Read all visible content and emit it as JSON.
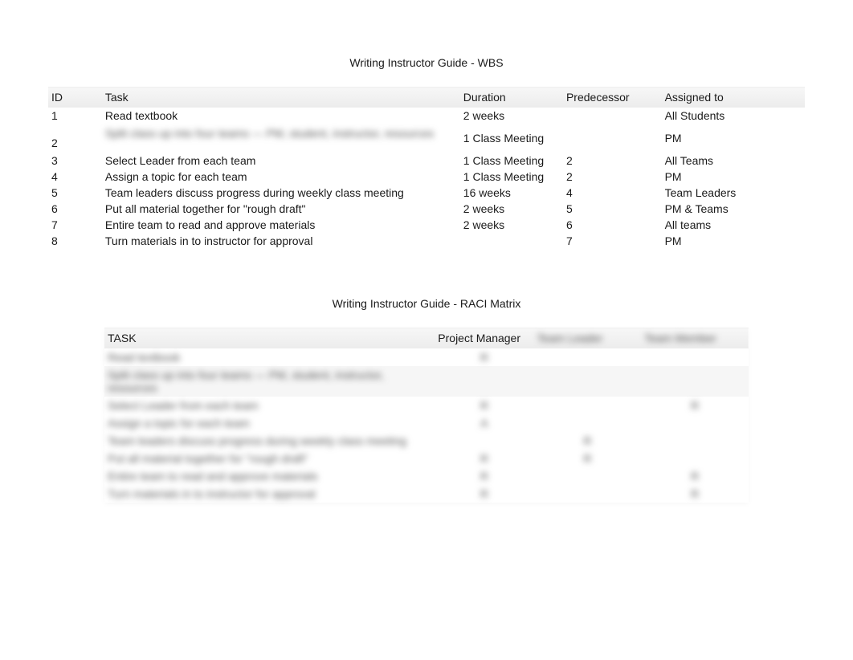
{
  "wbs": {
    "title": "Writing Instructor Guide - WBS",
    "columns": [
      "ID",
      "Task",
      "Duration",
      "Predecessor",
      "Assigned to"
    ],
    "rows": [
      {
        "id": "1",
        "task": "Read textbook",
        "task_blurred": false,
        "duration": "2 weeks",
        "predecessor": "",
        "assigned": "All Students"
      },
      {
        "id": "2",
        "task": "Split class up into four teams — PM, student, instructor, resources",
        "task_blurred": true,
        "duration": "1 Class Meeting",
        "predecessor": "",
        "assigned": "PM"
      },
      {
        "id": "3",
        "task": "Select Leader from each team",
        "task_blurred": false,
        "duration": "1 Class Meeting",
        "predecessor": "2",
        "assigned": "All Teams"
      },
      {
        "id": "4",
        "task": "Assign a topic for each team",
        "task_blurred": false,
        "duration": "1 Class Meeting",
        "predecessor": "2",
        "assigned": "PM"
      },
      {
        "id": "5",
        "task": "Team leaders discuss progress during weekly class meeting",
        "task_blurred": false,
        "duration": "16 weeks",
        "predecessor": "4",
        "assigned": "Team Leaders"
      },
      {
        "id": "6",
        "task": "Put all material together for \"rough draft\"",
        "task_blurred": false,
        "duration": "2 weeks",
        "predecessor": "5",
        "assigned": "PM & Teams"
      },
      {
        "id": "7",
        "task": "Entire team to read and approve materials",
        "task_blurred": false,
        "duration": "2 weeks",
        "predecessor": "6",
        "assigned": "All teams"
      },
      {
        "id": "8",
        "task": "Turn materials in to instructor for approval",
        "task_blurred": false,
        "duration": "",
        "predecessor": "7",
        "assigned": "PM"
      }
    ]
  },
  "raci": {
    "title": "Writing Instructor Guide - RACI Matrix",
    "columns": [
      "TASK",
      "Project Manager",
      "Team Leader",
      "Team Member"
    ],
    "header_blurred": [
      false,
      false,
      true,
      true
    ],
    "rows": [
      {
        "task": "Read textbook",
        "pm": "R",
        "tl": "",
        "tm": "",
        "alt": false
      },
      {
        "task": "Split class up into four teams — PM, student, instructor, resources",
        "pm": "",
        "tl": "",
        "tm": "",
        "alt": true
      },
      {
        "task": "Select Leader from each team",
        "pm": "R",
        "tl": "",
        "tm": "R",
        "alt": false
      },
      {
        "task": "Assign a topic for each team",
        "pm": "A",
        "tl": "",
        "tm": "",
        "alt": false
      },
      {
        "task": "Team leaders discuss progress during weekly class meeting",
        "pm": "",
        "tl": "R",
        "tm": "",
        "alt": false
      },
      {
        "task": "Put all material together for \"rough draft\"",
        "pm": "R",
        "tl": "R",
        "tm": "",
        "alt": false
      },
      {
        "task": "Entire team to read and approve materials",
        "pm": "R",
        "tl": "",
        "tm": "R",
        "alt": false
      },
      {
        "task": "Turn materials in to instructor for approval",
        "pm": "R",
        "tl": "",
        "tm": "R",
        "alt": false
      }
    ]
  },
  "colors": {
    "text": "#1a1a1a",
    "header_bg_top": "#f7f7f7",
    "header_bg_bottom": "#ececec",
    "alt_row": "#f6f6f6",
    "background": "#ffffff"
  }
}
